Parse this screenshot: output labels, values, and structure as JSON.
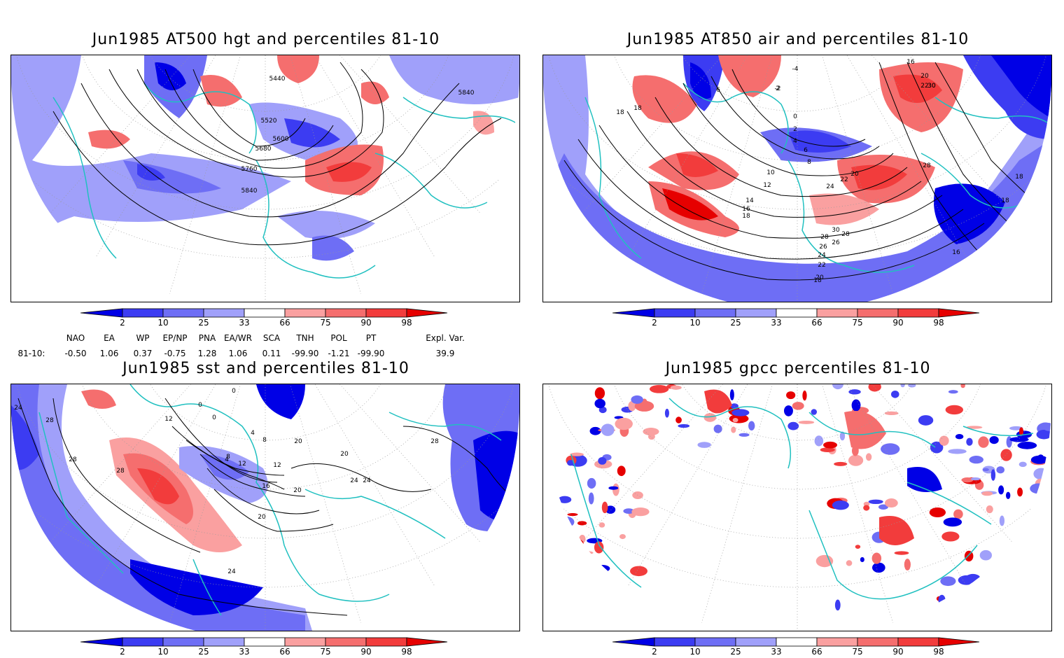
{
  "panels": [
    {
      "title": "Jun1985 AT500 hgt and percentiles 81-10",
      "contour_labels": [
        "5440",
        "5520",
        "5600",
        "5680",
        "5760",
        "5840",
        "5840"
      ]
    },
    {
      "title": "Jun1985 AT850 air and percentiles 81-10",
      "contour_labels": [
        "-4",
        "-2",
        "2",
        "0",
        "2",
        "4",
        "6",
        "6",
        "8",
        "10",
        "12",
        "14",
        "16",
        "18",
        "18",
        "18",
        "20",
        "22",
        "24",
        "26",
        "28",
        "30",
        "28",
        "26",
        "24",
        "22",
        "20",
        "18",
        "16",
        "18",
        "18",
        "16",
        "20",
        "22",
        "30",
        "30",
        "28"
      ]
    },
    {
      "title": "Jun1985 sst and percentiles 81-10",
      "contour_labels": [
        "24",
        "28",
        "28",
        "28",
        "12",
        "0",
        "0",
        "0",
        "4",
        "8",
        "4",
        "8",
        "12",
        "12",
        "16",
        "20",
        "20",
        "24",
        "24",
        "20",
        "28",
        "20",
        "24"
      ]
    },
    {
      "title": "Jun1985 gpcc percentiles 81-10",
      "contour_labels": []
    }
  ],
  "colorbar": {
    "labels": [
      "2",
      "10",
      "25",
      "33",
      "66",
      "75",
      "90",
      "98"
    ],
    "colors": [
      "#0000e6",
      "#3c3cf2",
      "#6e6ef5",
      "#a0a0fa",
      "#ffffff",
      "#faa0a0",
      "#f56e6e",
      "#f23c3c",
      "#e60000"
    ]
  },
  "indices": {
    "headers": [
      "NAO",
      "EA",
      "WP",
      "EP/NP",
      "PNA",
      "EA/WR",
      "SCA",
      "TNH",
      "POL",
      "PT",
      "Expl. Var."
    ],
    "row_label": "81-10:",
    "values": [
      "-0.50",
      "1.06",
      "0.37",
      "-0.75",
      "1.28",
      "1.06",
      "0.11",
      "-99.90",
      "-1.21",
      "-99.90",
      "39.9"
    ]
  },
  "colors": {
    "coastline": "#20c0c0",
    "contour": "#000000",
    "grid": "#999999"
  }
}
